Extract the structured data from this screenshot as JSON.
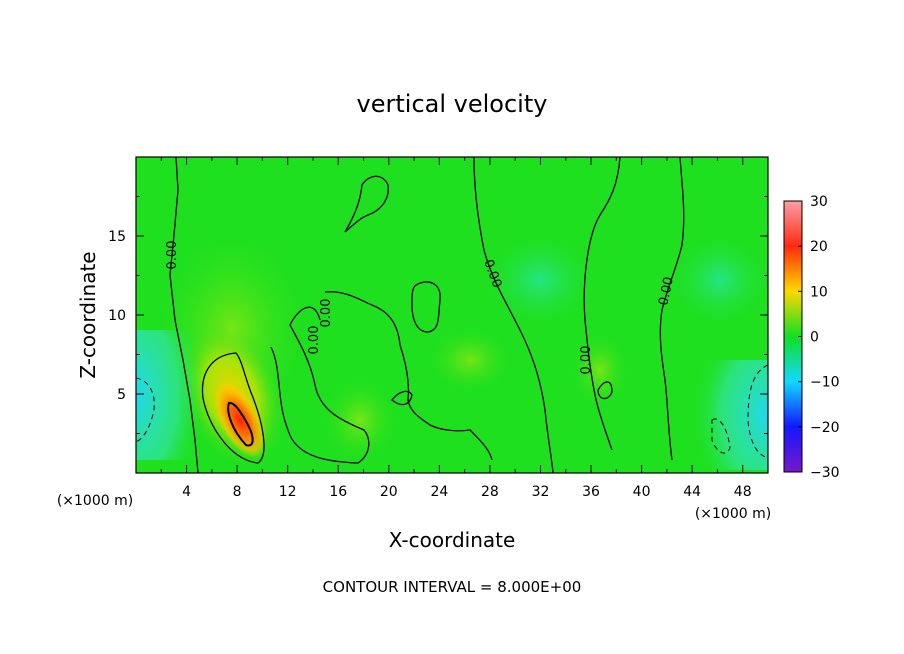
{
  "chart_data": {
    "type": "heatmap",
    "title": "vertical velocity",
    "xlabel": "X-coordinate",
    "ylabel": "Z-coordinate",
    "x_unit": "(×1000 m)",
    "xlim": [
      0,
      50
    ],
    "ylim": [
      0,
      20
    ],
    "xticks": [
      "4",
      "8",
      "12",
      "16",
      "20",
      "24",
      "28",
      "32",
      "36",
      "40",
      "44",
      "48"
    ],
    "yticks": [
      "5",
      "10",
      "15"
    ],
    "colorbar": {
      "min": -30,
      "max": 30,
      "ticks": [
        "30",
        "20",
        "10",
        "0",
        "−10",
        "−20",
        "−30"
      ],
      "colors": [
        "#fa9fa6",
        "#ff2a10",
        "#ffd800",
        "#10e022",
        "#12d8ff",
        "#1218ff",
        "#7818c8"
      ]
    },
    "contour_interval": 8.0,
    "contour_labels": [
      "0.00",
      "0.00",
      "0.00",
      "0.00",
      "0.00",
      "0.00"
    ],
    "footer": "CONTOUR INTERVAL = 8.000E+00",
    "features": [
      {
        "name": "updraft-core",
        "x": 8.5,
        "z": 3.2,
        "peak": 28
      },
      {
        "name": "left-downdraft",
        "x": 0.5,
        "z": 4,
        "peak": -10
      },
      {
        "name": "right-downdraft",
        "x": 49.5,
        "z": 4,
        "peak": -10
      }
    ]
  }
}
